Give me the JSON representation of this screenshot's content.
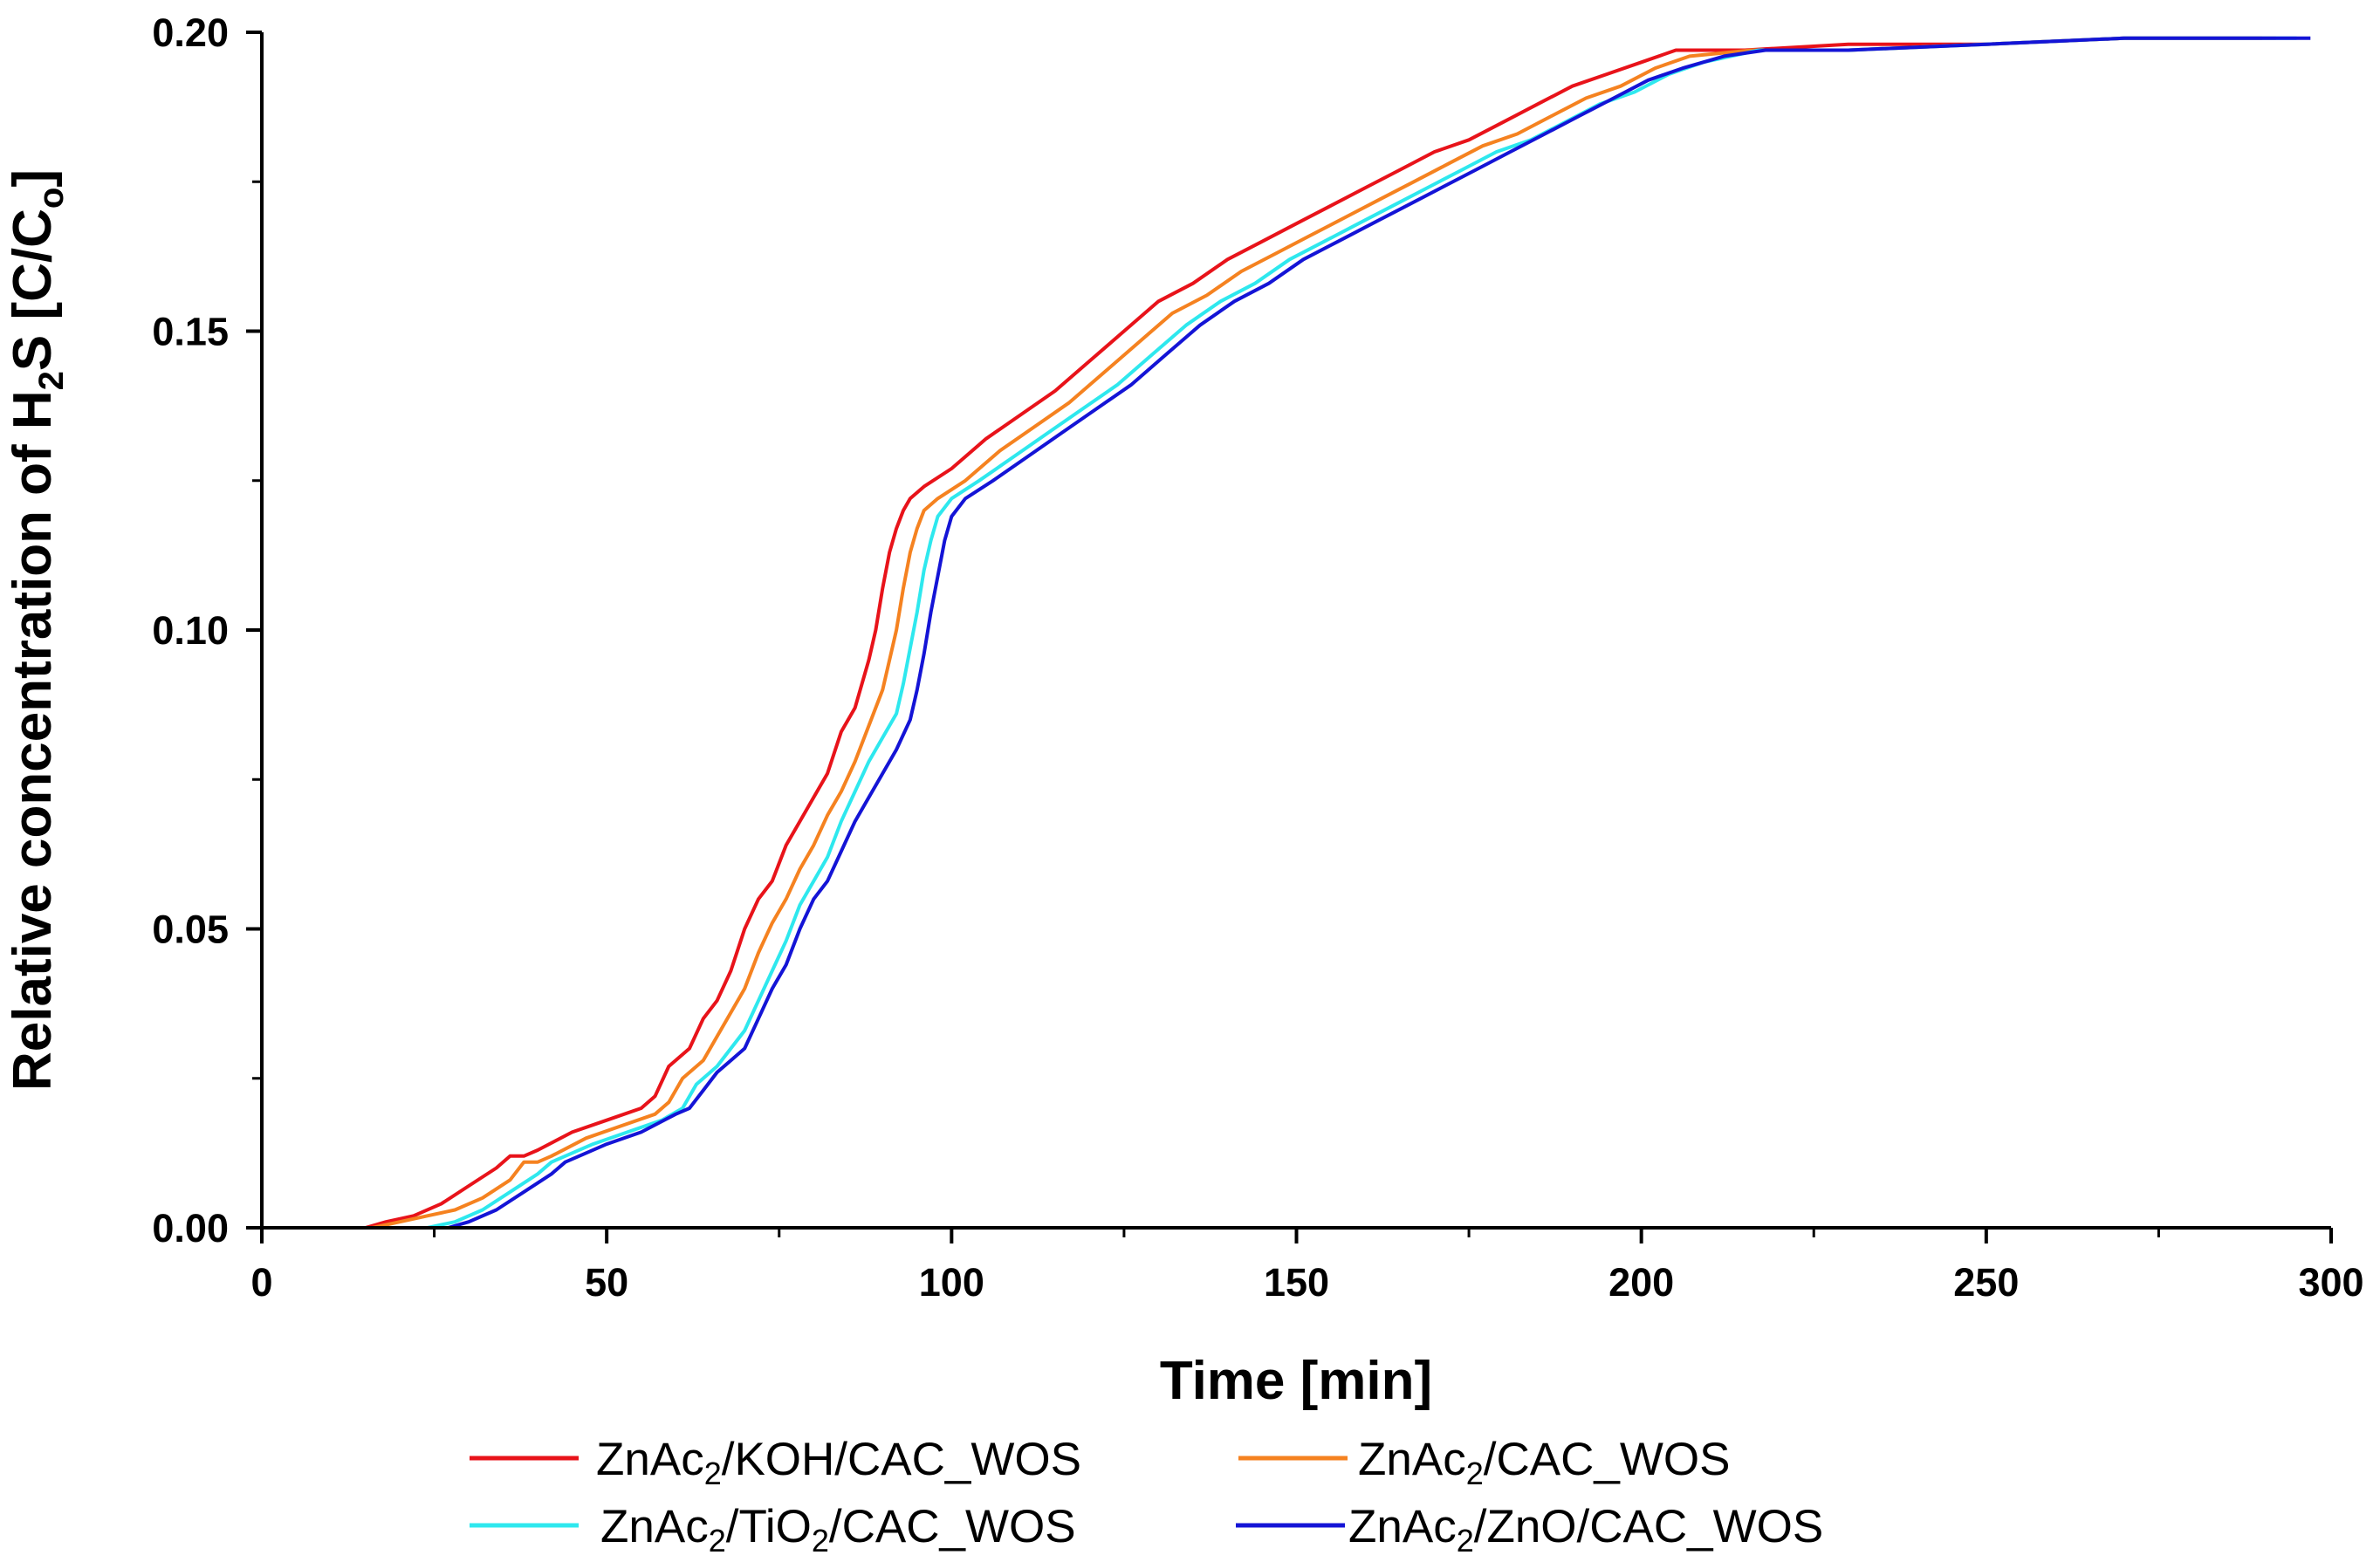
{
  "chart_data": {
    "type": "line",
    "xlabel": "Time [min]",
    "ylabel": {
      "pre": "Relative concentration of H",
      "sub1": "2",
      "mid": "S [C/C",
      "sub2": "o",
      "post": "]"
    },
    "xlim": [
      0,
      300
    ],
    "ylim": [
      0,
      0.2
    ],
    "x_ticks": [
      "0",
      "50",
      "100",
      "150",
      "200",
      "250",
      "300"
    ],
    "y_ticks": [
      "0.00",
      "0.05",
      "0.10",
      "0.15",
      "0.20"
    ],
    "grid": false,
    "legend_position": "bottom",
    "series": [
      {
        "name": "ZnAc2/KOH/CAC_WOS",
        "label_parts": {
          "a": "ZnAc",
          "sub1": "2",
          "b": "/KOH/CAC_WOS"
        },
        "color": "#e8131a",
        "x": [
          0,
          15,
          18,
          22,
          26,
          30,
          34,
          36,
          38,
          40,
          45,
          50,
          55,
          57,
          59,
          62,
          64,
          66,
          68,
          70,
          72,
          74,
          76,
          78,
          80,
          82,
          84,
          86,
          88,
          89,
          90,
          91,
          92,
          93,
          94,
          96,
          100,
          105,
          110,
          115,
          120,
          125,
          130,
          135,
          140,
          145,
          150,
          155,
          160,
          165,
          170,
          175,
          180,
          185,
          190,
          195,
          200,
          205,
          215,
          230,
          250,
          270,
          290
        ],
        "y": [
          0,
          0,
          0.001,
          0.002,
          0.004,
          0.007,
          0.01,
          0.012,
          0.012,
          0.013,
          0.016,
          0.018,
          0.02,
          0.022,
          0.027,
          0.03,
          0.035,
          0.038,
          0.043,
          0.05,
          0.055,
          0.058,
          0.064,
          0.068,
          0.072,
          0.076,
          0.083,
          0.087,
          0.095,
          0.1,
          0.107,
          0.113,
          0.117,
          0.12,
          0.122,
          0.124,
          0.127,
          0.132,
          0.136,
          0.14,
          0.145,
          0.15,
          0.155,
          0.158,
          0.162,
          0.165,
          0.168,
          0.171,
          0.174,
          0.177,
          0.18,
          0.182,
          0.185,
          0.188,
          0.191,
          0.193,
          0.195,
          0.197,
          0.197,
          0.198,
          0.198,
          0.199,
          0.199
        ]
      },
      {
        "name": "ZnAc2/CAC_WOS",
        "label_parts": {
          "a": "ZnAc",
          "sub1": "2",
          "b": "/CAC_WOS"
        },
        "color": "#f58220",
        "x": [
          0,
          16,
          20,
          24,
          28,
          32,
          36,
          38,
          40,
          42,
          47,
          52,
          57,
          59,
          61,
          64,
          66,
          68,
          70,
          72,
          74,
          76,
          78,
          80,
          82,
          84,
          86,
          88,
          90,
          91,
          92,
          93,
          94,
          95,
          96,
          98,
          102,
          107,
          112,
          117,
          122,
          127,
          132,
          137,
          142,
          147,
          152,
          157,
          162,
          167,
          172,
          177,
          182,
          187,
          192,
          197,
          202,
          207,
          216,
          230,
          250,
          270,
          292
        ],
        "y": [
          0,
          0,
          0.001,
          0.002,
          0.003,
          0.005,
          0.008,
          0.011,
          0.011,
          0.012,
          0.015,
          0.017,
          0.019,
          0.021,
          0.025,
          0.028,
          0.032,
          0.036,
          0.04,
          0.046,
          0.051,
          0.055,
          0.06,
          0.064,
          0.069,
          0.073,
          0.078,
          0.084,
          0.09,
          0.095,
          0.1,
          0.107,
          0.113,
          0.117,
          0.12,
          0.122,
          0.125,
          0.13,
          0.134,
          0.138,
          0.143,
          0.148,
          0.153,
          0.156,
          0.16,
          0.163,
          0.166,
          0.169,
          0.172,
          0.175,
          0.178,
          0.181,
          0.183,
          0.186,
          0.189,
          0.191,
          0.194,
          0.196,
          0.197,
          0.197,
          0.198,
          0.199,
          0.199
        ]
      },
      {
        "name": "ZnAc2/TiO2/CAC_WOS",
        "label_parts": {
          "a": "ZnAc",
          "sub1": "2",
          "b": "/TiO",
          "sub2": "2",
          "c": "/CAC_WOS"
        },
        "color": "#2ee8ee",
        "x": [
          0,
          24,
          28,
          32,
          36,
          40,
          42,
          44,
          48,
          53,
          58,
          61,
          63,
          66,
          68,
          70,
          72,
          74,
          76,
          78,
          80,
          82,
          84,
          86,
          88,
          90,
          92,
          93,
          94,
          95,
          96,
          97,
          98,
          100,
          104,
          109,
          114,
          119,
          124,
          129,
          134,
          139,
          144,
          149,
          154,
          159,
          164,
          169,
          174,
          179,
          184,
          189,
          194,
          199,
          204,
          209,
          217,
          230,
          250,
          270,
          295
        ],
        "y": [
          0,
          0,
          0.001,
          0.003,
          0.006,
          0.009,
          0.011,
          0.012,
          0.014,
          0.016,
          0.018,
          0.02,
          0.024,
          0.027,
          0.03,
          0.033,
          0.038,
          0.043,
          0.048,
          0.054,
          0.058,
          0.062,
          0.068,
          0.073,
          0.078,
          0.082,
          0.086,
          0.091,
          0.097,
          0.103,
          0.11,
          0.115,
          0.119,
          0.122,
          0.125,
          0.129,
          0.133,
          0.137,
          0.141,
          0.146,
          0.151,
          0.155,
          0.158,
          0.162,
          0.165,
          0.168,
          0.171,
          0.174,
          0.177,
          0.18,
          0.182,
          0.185,
          0.188,
          0.19,
          0.193,
          0.195,
          0.197,
          0.197,
          0.198,
          0.199,
          0.199
        ]
      },
      {
        "name": "ZnAc2/ZnO/CAC_WOS",
        "label_parts": {
          "a": "ZnAc",
          "sub1": "2",
          "b": "/ZnO/CAC_WOS"
        },
        "color": "#1414d6",
        "x": [
          0,
          27,
          30,
          34,
          38,
          42,
          44,
          46,
          50,
          55,
          60,
          62,
          64,
          66,
          68,
          70,
          72,
          74,
          76,
          78,
          80,
          82,
          84,
          86,
          88,
          90,
          92,
          94,
          95,
          96,
          97,
          98,
          99,
          100,
          102,
          106,
          111,
          116,
          121,
          126,
          131,
          136,
          141,
          146,
          151,
          156,
          161,
          166,
          171,
          176,
          181,
          186,
          191,
          196,
          201,
          206,
          212,
          218,
          230,
          250,
          270,
          297
        ],
        "y": [
          0,
          0,
          0.001,
          0.003,
          0.006,
          0.009,
          0.011,
          0.012,
          0.014,
          0.016,
          0.019,
          0.02,
          0.023,
          0.026,
          0.028,
          0.03,
          0.035,
          0.04,
          0.044,
          0.05,
          0.055,
          0.058,
          0.063,
          0.068,
          0.072,
          0.076,
          0.08,
          0.085,
          0.09,
          0.096,
          0.103,
          0.109,
          0.115,
          0.119,
          0.122,
          0.125,
          0.129,
          0.133,
          0.137,
          0.141,
          0.146,
          0.151,
          0.155,
          0.158,
          0.162,
          0.165,
          0.168,
          0.171,
          0.174,
          0.177,
          0.18,
          0.183,
          0.186,
          0.189,
          0.192,
          0.194,
          0.196,
          0.197,
          0.197,
          0.198,
          0.199,
          0.199
        ]
      }
    ]
  }
}
